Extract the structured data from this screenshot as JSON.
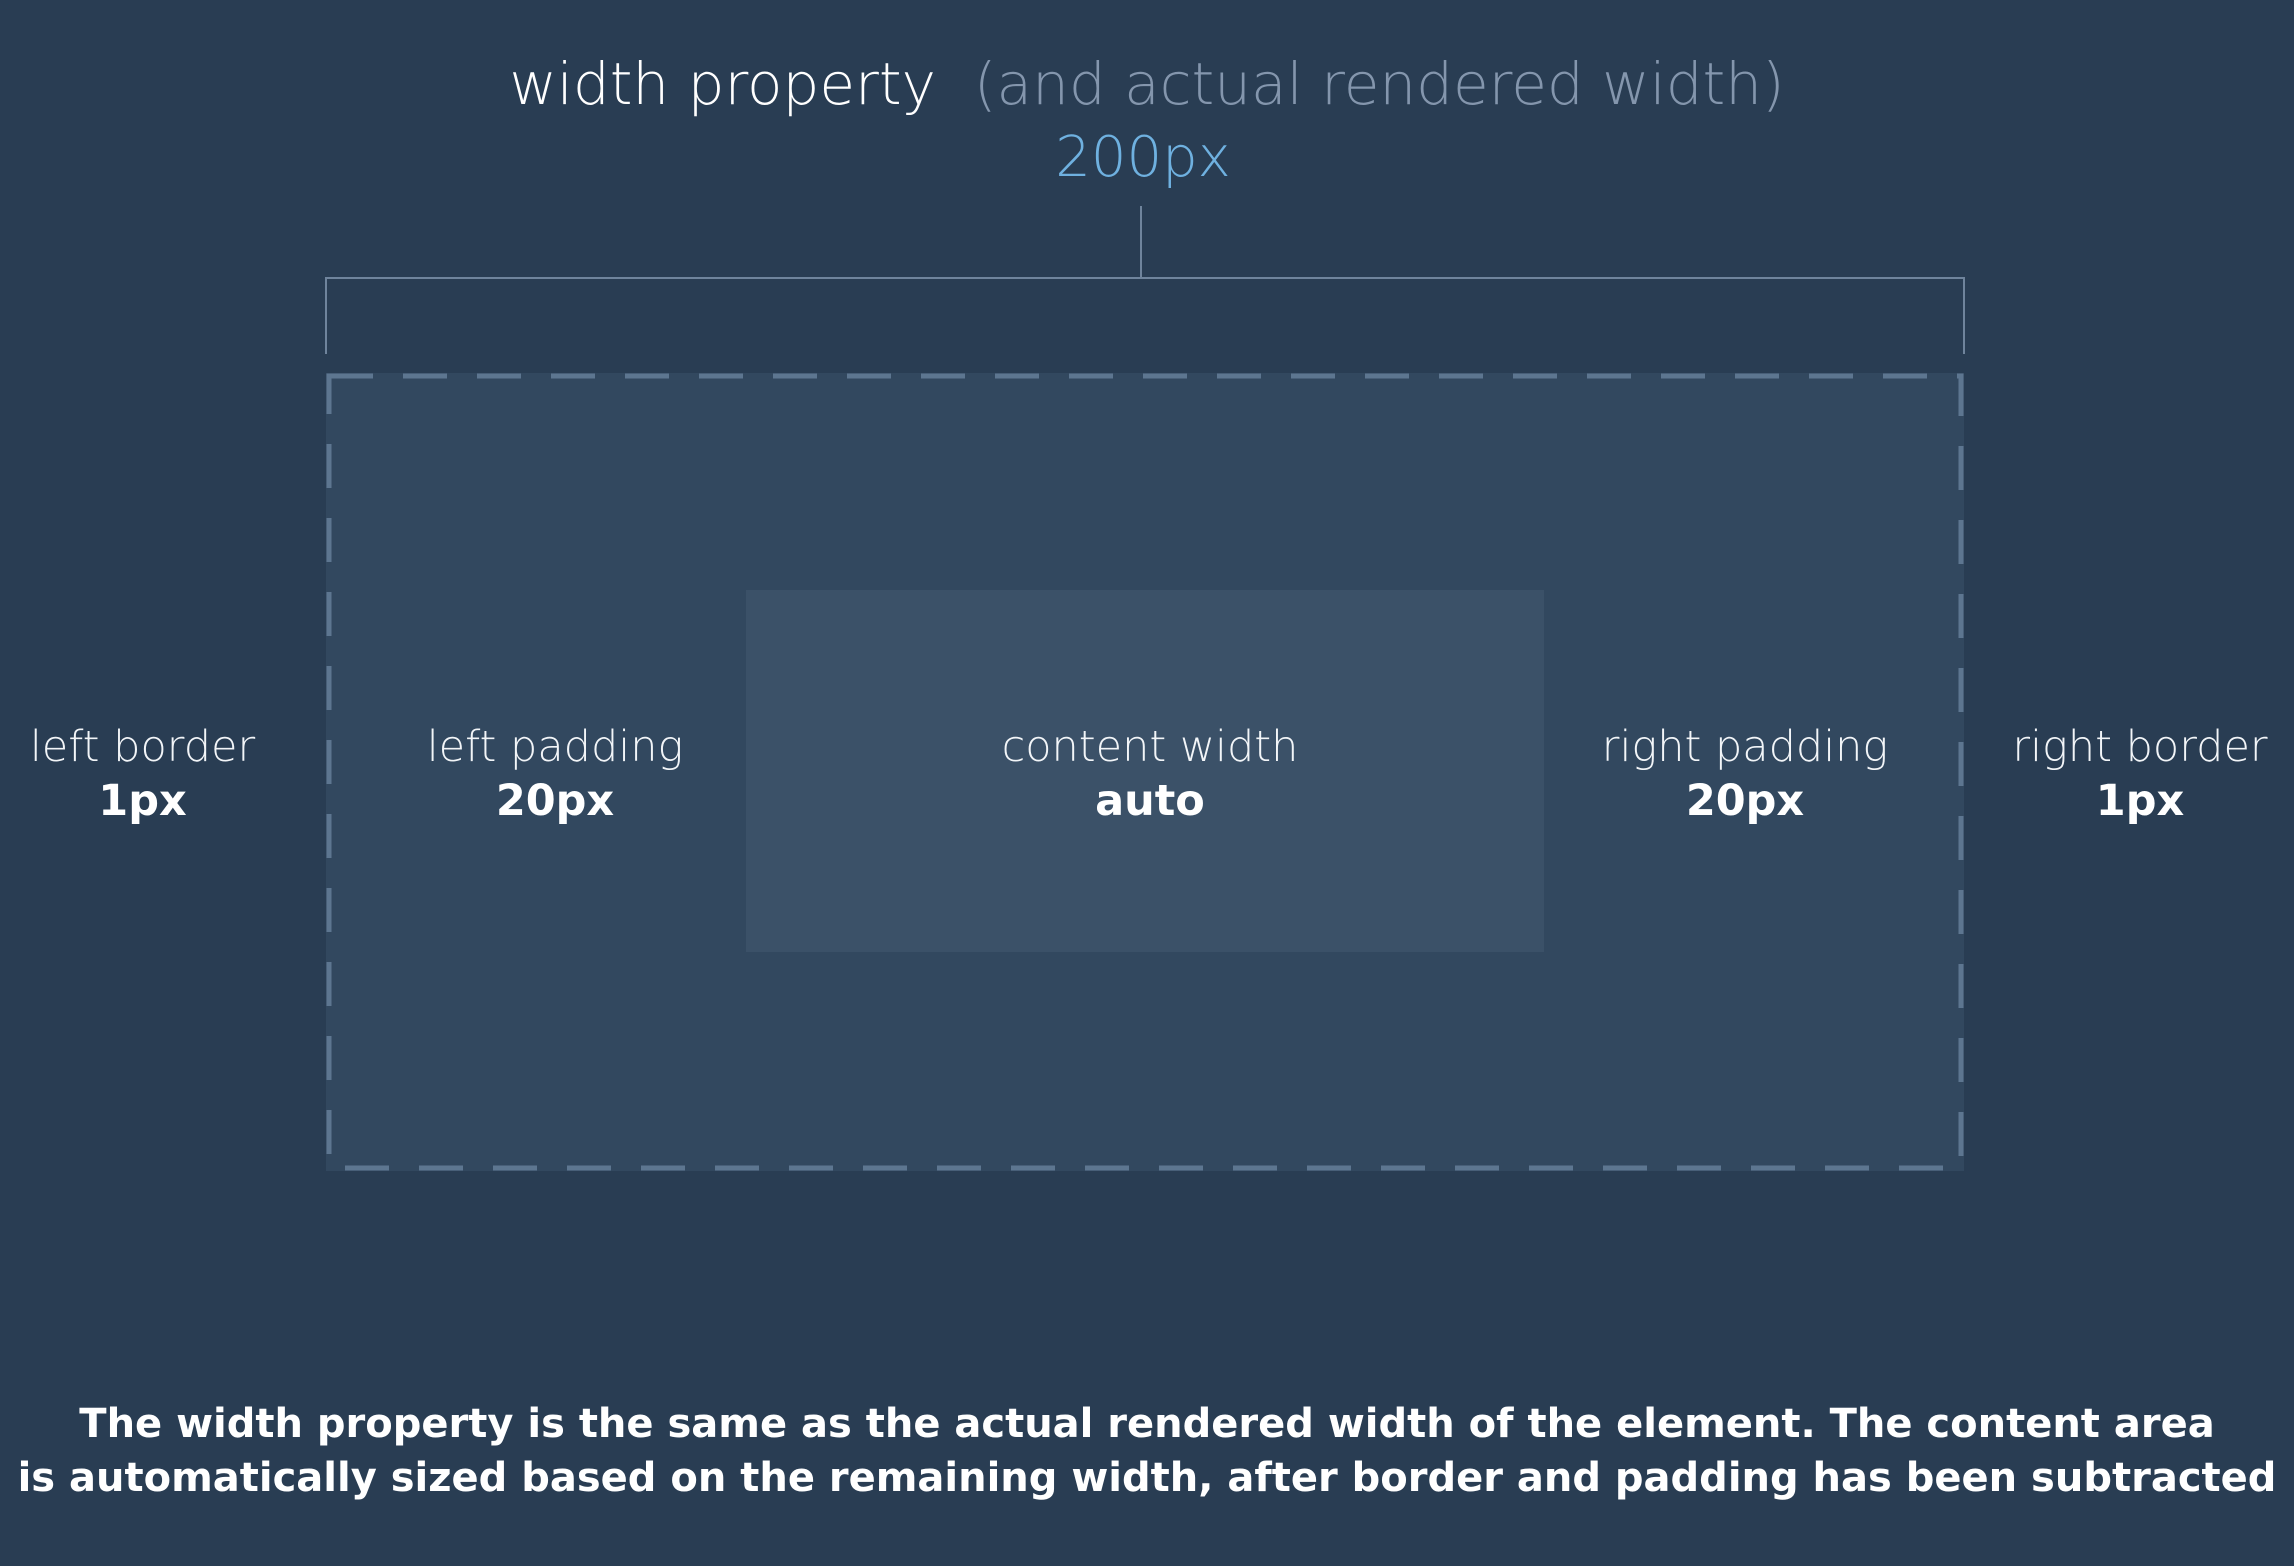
{
  "header": {
    "title": "width property",
    "subtitle": "(and actual rendered width)",
    "value": "200px"
  },
  "labels": {
    "left_border": {
      "name": "left border",
      "value": "1px"
    },
    "left_padding": {
      "name": "left padding",
      "value": "20px"
    },
    "content_width": {
      "name": "content width",
      "value": "auto"
    },
    "right_padding": {
      "name": "right padding",
      "value": "20px"
    },
    "right_border": {
      "name": "right border",
      "value": "1px"
    }
  },
  "footer": {
    "line1": "The width property is the same as the actual rendered width of the element. The content area",
    "line2": "is automatically sized based on the remaining width, after border and padding has been subtracted"
  },
  "colors": {
    "background": "#293d53",
    "padding_area": "#32485f",
    "content_area": "#3b5168",
    "dashed_border": "#5d7690",
    "accent_value": "#6fb1e0",
    "subtitle": "#8496ad"
  }
}
